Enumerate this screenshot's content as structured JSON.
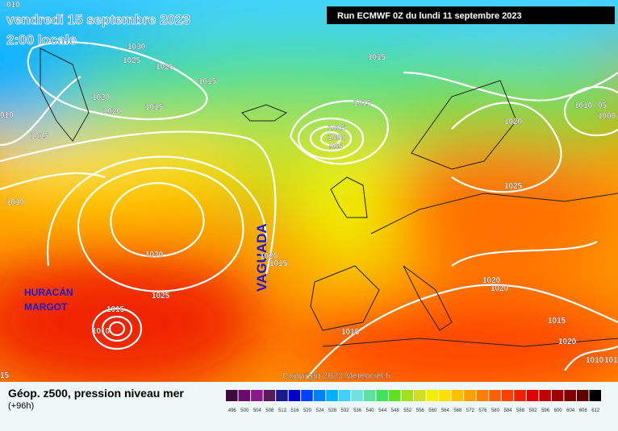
{
  "header": {
    "date": "vendredi 15 septembre 2023",
    "time": "2:00 locale",
    "run": "Run ECMWF 0Z du lundi 11 septembre 2023"
  },
  "annotations": {
    "trough": "VAGUADA",
    "hurricane_1": "HURACÁN",
    "hurricane_2": "MARGOT"
  },
  "isobar_labels": [
    "010",
    "1030",
    "1025",
    "1025",
    "1015",
    "1020",
    "1020",
    "1015",
    "010",
    "1015",
    "1015",
    "1015",
    "1005",
    "1000",
    "995",
    "1020",
    "1010",
    "05",
    "1000",
    "1025",
    "1010",
    "1030",
    "1020",
    "1015",
    "1025",
    "1015",
    "1010",
    "1020",
    "1020",
    "1015",
    "1015",
    "1020",
    "1010",
    "1015",
    "15"
  ],
  "copyright": "Copyright 2023 Meteociel.fr",
  "legend": {
    "title": "Géop. z500, pression niveau mer",
    "subtitle": "(+96h)",
    "ticks": [
      496,
      500,
      504,
      508,
      512,
      516,
      520,
      524,
      528,
      532,
      536,
      540,
      544,
      548,
      552,
      556,
      560,
      564,
      568,
      572,
      576,
      580,
      584,
      588,
      592,
      596,
      600,
      604,
      608,
      612
    ],
    "colors": [
      "#3c0a3c",
      "#6a0a6a",
      "#8a1a8a",
      "#5a1a5a",
      "#1a1a8a",
      "#0000c8",
      "#0040ff",
      "#0080ff",
      "#00b0ff",
      "#40d0ff",
      "#70e0e0",
      "#60e0a0",
      "#40e060",
      "#60e020",
      "#a0e020",
      "#d0e020",
      "#f0f000",
      "#ffe000",
      "#ffc000",
      "#ffa000",
      "#ff8000",
      "#ff6000",
      "#ff4000",
      "#f02000",
      "#e00000",
      "#c00000",
      "#a00000",
      "#800000",
      "#600000",
      "#000000"
    ]
  }
}
